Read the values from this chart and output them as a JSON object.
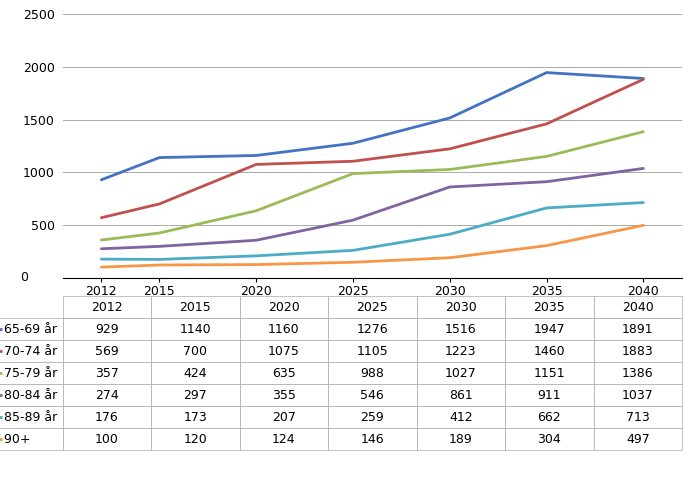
{
  "years": [
    2012,
    2015,
    2020,
    2025,
    2030,
    2035,
    2040
  ],
  "series": [
    {
      "label": "65-69 år",
      "color": "#4472C4",
      "values": [
        929,
        1140,
        1160,
        1276,
        1516,
        1947,
        1891
      ]
    },
    {
      "label": "70-74 år",
      "color": "#C0504D",
      "values": [
        569,
        700,
        1075,
        1105,
        1223,
        1460,
        1883
      ]
    },
    {
      "label": "75-79 år",
      "color": "#9BBB59",
      "values": [
        357,
        424,
        635,
        988,
        1027,
        1151,
        1386
      ]
    },
    {
      "label": "80-84 år",
      "color": "#8064A2",
      "values": [
        274,
        297,
        355,
        546,
        861,
        911,
        1037
      ]
    },
    {
      "label": "85-89 år",
      "color": "#4BACC6",
      "values": [
        176,
        173,
        207,
        259,
        412,
        662,
        713
      ]
    },
    {
      "label": "90+",
      "color": "#F79646",
      "values": [
        100,
        120,
        124,
        146,
        189,
        304,
        497
      ]
    }
  ],
  "ylim": [
    0,
    2500
  ],
  "yticks": [
    0,
    500,
    1000,
    1500,
    2000,
    2500
  ],
  "col_labels": [
    "2012",
    "2015",
    "2020",
    "2025",
    "2030",
    "2035",
    "2040"
  ],
  "row_labels": [
    "65-69 år",
    "70-74 år",
    "75-79 år",
    "80-84 år",
    "85-89 år",
    "90+"
  ],
  "row_colors": [
    "#4472C4",
    "#C0504D",
    "#9BBB59",
    "#8064A2",
    "#4BACC6",
    "#F79646"
  ],
  "table_values": [
    [
      929,
      1140,
      1160,
      1276,
      1516,
      1947,
      1891
    ],
    [
      569,
      700,
      1075,
      1105,
      1223,
      1460,
      1883
    ],
    [
      357,
      424,
      635,
      988,
      1027,
      1151,
      1386
    ],
    [
      274,
      297,
      355,
      546,
      861,
      911,
      1037
    ],
    [
      176,
      173,
      207,
      259,
      412,
      662,
      713
    ],
    [
      100,
      120,
      124,
      146,
      189,
      304,
      497
    ]
  ],
  "background_color": "#FFFFFF",
  "grid_color": "#AAAAAA",
  "line_width": 2.0,
  "chart_font_size": 9,
  "table_font_size": 9
}
